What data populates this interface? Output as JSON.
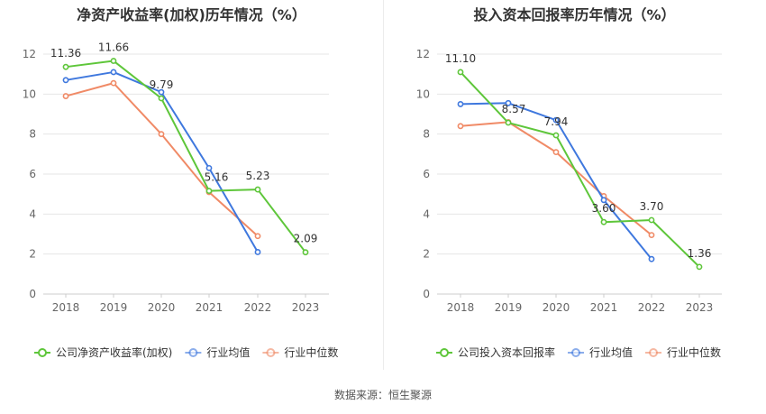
{
  "colors": {
    "company": "#5ec63a",
    "avg": "#3f78de",
    "median": "#f08a66",
    "grid": "#e6e6e6",
    "axis_text": "#666666"
  },
  "source": "数据来源：恒生聚源",
  "chart_data": [
    {
      "type": "line",
      "title": "净资产收益率(加权)历年情况（%）",
      "x": [
        "2018",
        "2019",
        "2020",
        "2021",
        "2022",
        "2023"
      ],
      "ylim": [
        0,
        12
      ],
      "yticks": [
        "0",
        "2",
        "4",
        "6",
        "8",
        "10",
        "12"
      ],
      "grid": true,
      "legend_position": "bottom",
      "series": [
        {
          "name": "公司净资产收益率(加权)",
          "key": "company",
          "values": [
            11.36,
            11.66,
            9.79,
            5.16,
            5.23,
            2.09
          ],
          "labels": [
            "11.36",
            "11.66",
            "9.79",
            "5.16",
            "5.23",
            "2.09"
          ]
        },
        {
          "name": "行业均值",
          "key": "avg",
          "values": [
            10.7,
            11.1,
            10.1,
            6.3,
            2.1,
            null
          ]
        },
        {
          "name": "行业中位数",
          "key": "median",
          "values": [
            9.9,
            10.55,
            8.0,
            5.1,
            2.9,
            null
          ]
        }
      ]
    },
    {
      "type": "line",
      "title": "投入资本回报率历年情况（%）",
      "x": [
        "2018",
        "2019",
        "2020",
        "2021",
        "2022",
        "2023"
      ],
      "ylim": [
        0,
        12
      ],
      "yticks": [
        "0",
        "2",
        "4",
        "6",
        "8",
        "10",
        "12"
      ],
      "grid": true,
      "legend_position": "bottom",
      "series": [
        {
          "name": "公司投入资本回报率",
          "key": "company",
          "values": [
            11.1,
            8.57,
            7.94,
            3.6,
            3.7,
            1.36
          ],
          "labels": [
            "11.10",
            "8.57",
            "7.94",
            "3.60",
            "3.70",
            "1.36"
          ]
        },
        {
          "name": "行业均值",
          "key": "avg",
          "values": [
            9.5,
            9.55,
            8.7,
            4.7,
            1.75,
            null
          ]
        },
        {
          "name": "行业中位数",
          "key": "median",
          "values": [
            8.4,
            8.6,
            7.1,
            4.9,
            2.95,
            null
          ]
        }
      ]
    }
  ]
}
